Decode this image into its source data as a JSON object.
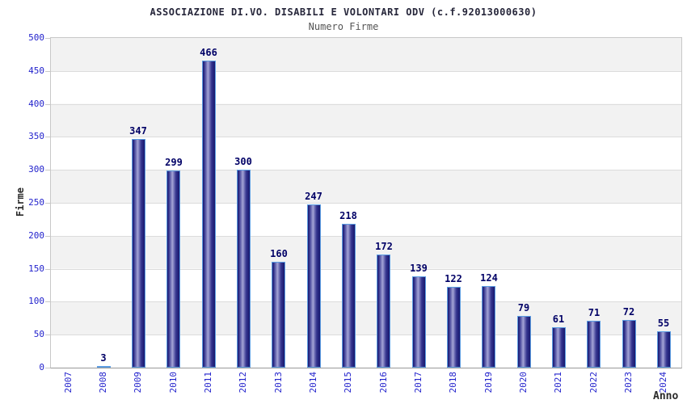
{
  "chart_data": {
    "type": "bar",
    "title": "ASSOCIAZIONE DI.VO. DISABILI E VOLONTARI ODV (c.f.92013000630)",
    "subtitle": "Numero Firme",
    "xlabel": "Anno",
    "ylabel": "Firme",
    "categories": [
      "2007",
      "2008",
      "2009",
      "2010",
      "2011",
      "2012",
      "2013",
      "2014",
      "2015",
      "2016",
      "2017",
      "2018",
      "2019",
      "2020",
      "2021",
      "2022",
      "2023",
      "2024"
    ],
    "values": [
      0,
      3,
      347,
      299,
      466,
      300,
      160,
      247,
      218,
      172,
      139,
      122,
      124,
      79,
      61,
      71,
      72,
      55
    ],
    "ylim": [
      0,
      500
    ],
    "ytick_step": 50,
    "y_ticks": [
      0,
      50,
      100,
      150,
      200,
      250,
      300,
      350,
      400,
      450,
      500
    ],
    "grid": "horizontal-alternating-bands",
    "legend": "none",
    "bar_value_labels_shown": true
  },
  "colors": {
    "background": "#ffffff",
    "title": "#26263a",
    "subtitle": "#555555",
    "axis_label": "#2222cc",
    "value_label": "#000066",
    "axis_title": "#2b2b2b",
    "bar_dark": "#18186e",
    "bar_mid": "#34348e",
    "bar_highlight": "#a4a4d6",
    "bar_border": "#5c9de2",
    "band_gray": "#f2f2f2",
    "band_white": "#ffffff",
    "gridline": "#dcdcdc",
    "plot_border": "#c8c8c8",
    "axis_line": "#999999"
  }
}
